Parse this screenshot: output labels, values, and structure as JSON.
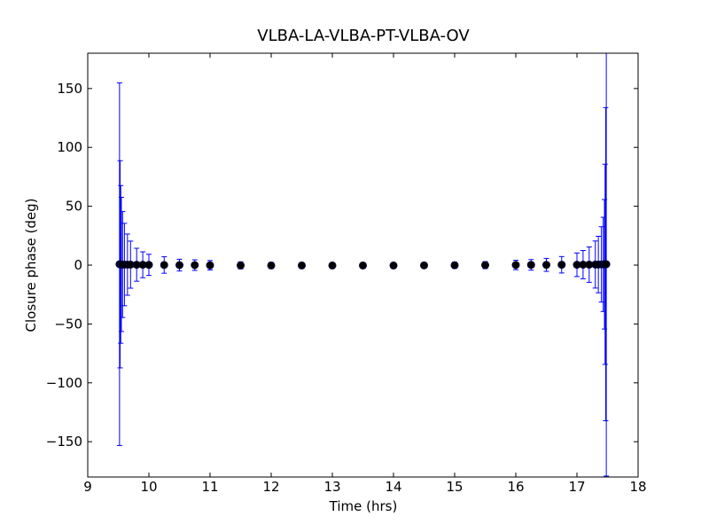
{
  "chart_data": {
    "type": "errorbar",
    "title": "VLBA-LA-VLBA-PT-VLBA-OV",
    "xlabel": "Time (hrs)",
    "ylabel": "Closure phase (deg)",
    "x": [
      9.52,
      9.53,
      9.54,
      9.55,
      9.57,
      9.6,
      9.65,
      9.7,
      9.8,
      9.9,
      10.0,
      10.25,
      10.5,
      10.75,
      11.0,
      11.5,
      12.0,
      12.5,
      13.0,
      13.5,
      14.0,
      14.5,
      15.0,
      15.5,
      16.0,
      16.25,
      16.5,
      16.75,
      17.0,
      17.1,
      17.2,
      17.3,
      17.35,
      17.4,
      17.43,
      17.45,
      17.46,
      17.47,
      17.48
    ],
    "values": [
      0.8,
      0.7,
      0.6,
      0.6,
      0.5,
      0.5,
      0.4,
      0.4,
      0.3,
      0.3,
      0.2,
      0.1,
      0,
      0,
      -0.1,
      -0.2,
      -0.3,
      -0.3,
      -0.3,
      -0.3,
      -0.3,
      -0.2,
      -0.1,
      0,
      0.1,
      0.2,
      0.2,
      0.3,
      0.3,
      0.4,
      0.4,
      0.5,
      0.5,
      0.6,
      0.6,
      0.7,
      0.7,
      0.8,
      0.8
    ],
    "errors": [
      154,
      88,
      67,
      57,
      45,
      35,
      26,
      20,
      14,
      11,
      9,
      7,
      5,
      4.5,
      4,
      3,
      2.5,
      2,
      2,
      2,
      2,
      2,
      2.5,
      3,
      4,
      4.5,
      5.5,
      7,
      10,
      12,
      15,
      20,
      24,
      32,
      40,
      55,
      85,
      133,
      180
    ],
    "color": "#0000ff",
    "marker_color": "#000000",
    "xlim": [
      9,
      18
    ],
    "xticks": [
      9,
      10,
      11,
      12,
      13,
      14,
      15,
      16,
      17,
      18
    ],
    "ylim": [
      -180,
      180
    ],
    "yticks": [
      {
        "value": -150,
        "label": "−150"
      },
      {
        "value": -100,
        "label": "−100"
      },
      {
        "value": -50,
        "label": "−50"
      },
      0,
      50,
      100,
      150
    ]
  }
}
